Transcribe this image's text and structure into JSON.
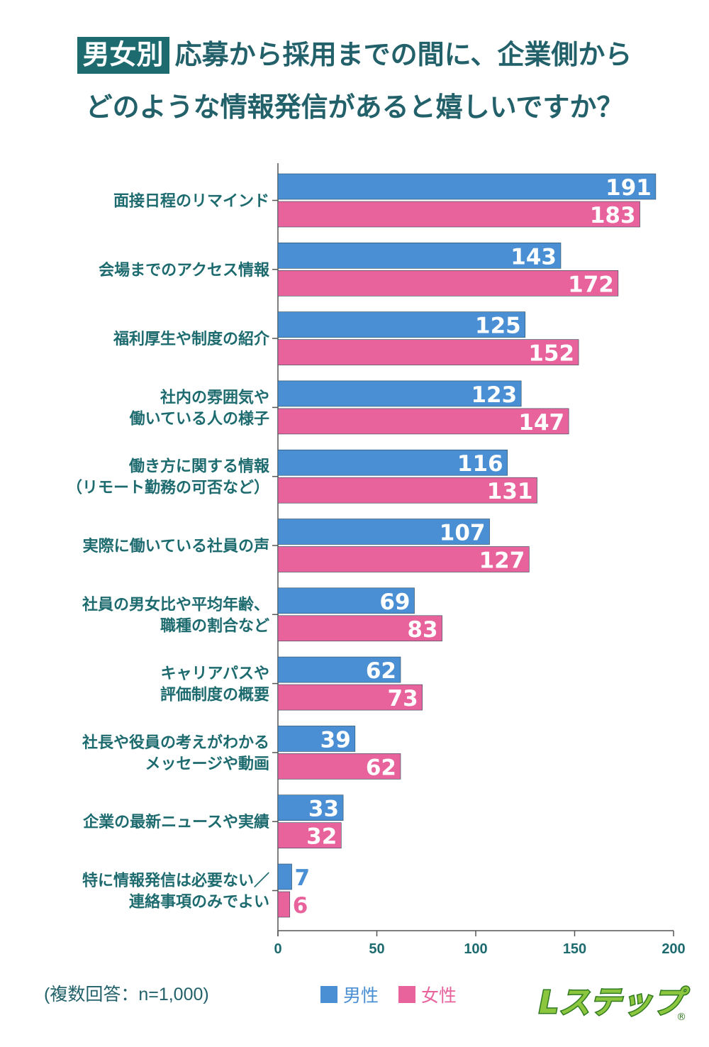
{
  "title": {
    "badge": "男女別",
    "line1": "応募から採用までの間に、企業側から",
    "line2": "どのような情報発信があると嬉しいですか？"
  },
  "chart_data": {
    "type": "bar",
    "orientation": "horizontal",
    "categories": [
      [
        "面接日程のリマインド"
      ],
      [
        "会場までのアクセス情報"
      ],
      [
        "福利厚生や制度の紹介"
      ],
      [
        "社内の雰囲気や",
        "働いている人の様子"
      ],
      [
        "働き方に関する情報",
        "（リモート勤務の可否など）"
      ],
      [
        "実際に働いている社員の声"
      ],
      [
        "社員の男女比や平均年齢、",
        "職種の割合など"
      ],
      [
        "キャリアパスや",
        "評価制度の概要"
      ],
      [
        "社長や役員の考えがわかる",
        "メッセージや動画"
      ],
      [
        "企業の最新ニュースや実績"
      ],
      [
        "特に情報発信は必要ない／",
        "連絡事項のみでよい"
      ]
    ],
    "series": [
      {
        "name": "男性",
        "color": "#4a8fd3",
        "values": [
          191,
          143,
          125,
          123,
          116,
          107,
          69,
          62,
          39,
          33,
          7
        ]
      },
      {
        "name": "女性",
        "color": "#e8629b",
        "values": [
          183,
          172,
          152,
          147,
          131,
          127,
          83,
          73,
          62,
          32,
          6
        ]
      }
    ],
    "xlim": [
      0,
      200
    ],
    "xticks": [
      "0",
      "50",
      "100",
      "150",
      "200"
    ],
    "legend": "bottom-center",
    "grid": false
  },
  "footnote": "(複数回答：n=1,000)",
  "logo_text": "Lステップ",
  "logo_mark": "®",
  "colors": {
    "title": "#23616a",
    "axis_text": "#1d6b6f"
  }
}
